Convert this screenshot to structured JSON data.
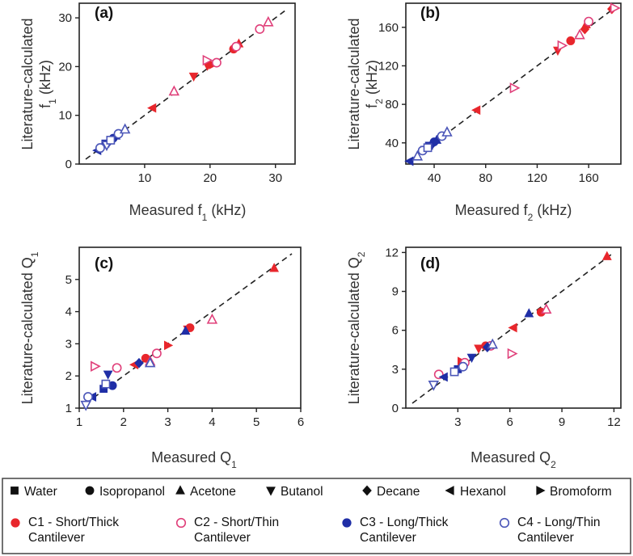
{
  "colors": {
    "C1": "#e8262c",
    "C2": "#e0407a",
    "C3": "#1f2ea6",
    "C4": "#4b56b8"
  },
  "chart_data": [
    {
      "type": "scatter",
      "panel": "(a)",
      "xlabel": "Measured f₁ (kHz)",
      "ylabel": "Literature-calculated f₁ (kHz)",
      "xlim": [
        0,
        33
      ],
      "ylim": [
        0,
        33
      ],
      "xticks": [
        10,
        20,
        30
      ],
      "yticks": [
        0,
        10,
        20,
        30
      ],
      "xtick_labels": [
        "10",
        "20",
        "30"
      ],
      "ytick_labels": [
        "0",
        "10",
        "20",
        "30"
      ],
      "reference_line": "y = x",
      "points": [
        {
          "x": 11.2,
          "y": 11.5,
          "shape": "tri-left",
          "group": "C1"
        },
        {
          "x": 17.5,
          "y": 18.0,
          "shape": "tri-down",
          "group": "C1"
        },
        {
          "x": 19.6,
          "y": 20.2,
          "shape": "tri-down",
          "group": "C1"
        },
        {
          "x": 20.4,
          "y": 20.4,
          "shape": "tri-right",
          "group": "C1"
        },
        {
          "x": 23.6,
          "y": 23.6,
          "shape": "circle",
          "group": "C1"
        },
        {
          "x": 24.4,
          "y": 24.7,
          "shape": "tri-up",
          "group": "C1"
        },
        {
          "x": 14.5,
          "y": 14.9,
          "shape": "tri-up",
          "group": "C2"
        },
        {
          "x": 19.5,
          "y": 21.3,
          "shape": "tri-right",
          "group": "C2"
        },
        {
          "x": 21.0,
          "y": 20.8,
          "shape": "circle",
          "group": "C2"
        },
        {
          "x": 24.0,
          "y": 24.1,
          "shape": "circle",
          "group": "C2"
        },
        {
          "x": 27.6,
          "y": 27.7,
          "shape": "circle",
          "group": "C2"
        },
        {
          "x": 28.9,
          "y": 29.1,
          "shape": "tri-up",
          "group": "C2"
        },
        {
          "x": 2.8,
          "y": 2.8,
          "shape": "tri-left",
          "group": "C3"
        },
        {
          "x": 3.5,
          "y": 3.4,
          "shape": "tri-down",
          "group": "C3"
        },
        {
          "x": 4.0,
          "y": 4.2,
          "shape": "square",
          "group": "C3"
        },
        {
          "x": 4.5,
          "y": 4.5,
          "shape": "diamond",
          "group": "C3"
        },
        {
          "x": 5.2,
          "y": 5.3,
          "shape": "circle",
          "group": "C3"
        },
        {
          "x": 5.6,
          "y": 5.8,
          "shape": "tri-up",
          "group": "C3"
        },
        {
          "x": 3.2,
          "y": 3.3,
          "shape": "circle",
          "group": "C4"
        },
        {
          "x": 4.2,
          "y": 3.9,
          "shape": "tri-down",
          "group": "C4"
        },
        {
          "x": 4.8,
          "y": 4.9,
          "shape": "square",
          "group": "C4"
        },
        {
          "x": 6.0,
          "y": 6.2,
          "shape": "circle",
          "group": "C4"
        },
        {
          "x": 7.0,
          "y": 7.1,
          "shape": "tri-up",
          "group": "C4"
        }
      ]
    },
    {
      "type": "scatter",
      "panel": "(b)",
      "xlabel": "Measured f₂ (kHz)",
      "ylabel": "Literature-calculated f₂ (kHz)",
      "xlim": [
        18,
        185
      ],
      "ylim": [
        18,
        185
      ],
      "xticks": [
        40,
        80,
        120,
        160
      ],
      "yticks": [
        40,
        80,
        120,
        160
      ],
      "xtick_labels": [
        "40",
        "80",
        "120",
        "160"
      ],
      "ytick_labels": [
        "40",
        "80",
        "120",
        "160"
      ],
      "reference_line": "y = x",
      "points": [
        {
          "x": 73,
          "y": 74,
          "shape": "tri-left",
          "group": "C1"
        },
        {
          "x": 136,
          "y": 136,
          "shape": "tri-down",
          "group": "C1"
        },
        {
          "x": 146,
          "y": 146,
          "shape": "circle",
          "group": "C1"
        },
        {
          "x": 157,
          "y": 158,
          "shape": "diamond",
          "group": "C1"
        },
        {
          "x": 158,
          "y": 163,
          "shape": "tri-up",
          "group": "C1"
        },
        {
          "x": 178,
          "y": 179,
          "shape": "diamond",
          "group": "C1"
        },
        {
          "x": 102,
          "y": 97,
          "shape": "tri-right",
          "group": "C2"
        },
        {
          "x": 139,
          "y": 141,
          "shape": "tri-right",
          "group": "C2"
        },
        {
          "x": 153,
          "y": 152,
          "shape": "tri-up",
          "group": "C2"
        },
        {
          "x": 160,
          "y": 166,
          "shape": "circle",
          "group": "C2"
        },
        {
          "x": 180,
          "y": 180,
          "shape": "tri-right",
          "group": "C2"
        },
        {
          "x": 21,
          "y": 21,
          "shape": "tri-left",
          "group": "C3"
        },
        {
          "x": 33,
          "y": 33,
          "shape": "tri-down",
          "group": "C3"
        },
        {
          "x": 36,
          "y": 37,
          "shape": "square",
          "group": "C3"
        },
        {
          "x": 38,
          "y": 38,
          "shape": "diamond",
          "group": "C3"
        },
        {
          "x": 40,
          "y": 41,
          "shape": "circle",
          "group": "C3"
        },
        {
          "x": 42,
          "y": 43,
          "shape": "tri-up",
          "group": "C3"
        },
        {
          "x": 27,
          "y": 26,
          "shape": "tri-up",
          "group": "C4"
        },
        {
          "x": 31,
          "y": 32,
          "shape": "circle",
          "group": "C4"
        },
        {
          "x": 35,
          "y": 35,
          "shape": "square",
          "group": "C4"
        },
        {
          "x": 46,
          "y": 47,
          "shape": "circle",
          "group": "C4"
        },
        {
          "x": 50,
          "y": 51,
          "shape": "tri-up",
          "group": "C4"
        }
      ]
    },
    {
      "type": "scatter",
      "panel": "(c)",
      "xlabel": "Measured Q₁",
      "ylabel": "Literature-calculated Q₁",
      "xlim": [
        1,
        6
      ],
      "ylim": [
        1,
        6
      ],
      "xticks": [
        1,
        2,
        3,
        4,
        5,
        6
      ],
      "yticks": [
        1,
        2,
        3,
        4,
        5
      ],
      "xtick_labels": [
        "1",
        "2",
        "3",
        "4",
        "5",
        "6"
      ],
      "ytick_labels": [
        "1",
        "2",
        "3",
        "4",
        "5"
      ],
      "reference_line": "y = x",
      "points": [
        {
          "x": 2.25,
          "y": 2.35,
          "shape": "tri-left",
          "group": "C1"
        },
        {
          "x": 2.5,
          "y": 2.55,
          "shape": "circle",
          "group": "C1"
        },
        {
          "x": 3.0,
          "y": 2.95,
          "shape": "tri-right",
          "group": "C1"
        },
        {
          "x": 3.45,
          "y": 3.45,
          "shape": "tri-down",
          "group": "C1"
        },
        {
          "x": 3.5,
          "y": 3.5,
          "shape": "circle",
          "group": "C1"
        },
        {
          "x": 5.4,
          "y": 5.35,
          "shape": "tri-up",
          "group": "C1"
        },
        {
          "x": 1.35,
          "y": 2.3,
          "shape": "tri-right",
          "group": "C2"
        },
        {
          "x": 1.85,
          "y": 2.25,
          "shape": "circle",
          "group": "C2"
        },
        {
          "x": 2.6,
          "y": 2.45,
          "shape": "tri-up",
          "group": "C2"
        },
        {
          "x": 2.75,
          "y": 2.7,
          "shape": "circle",
          "group": "C2"
        },
        {
          "x": 4.0,
          "y": 3.75,
          "shape": "tri-up",
          "group": "C2"
        },
        {
          "x": 1.3,
          "y": 1.35,
          "shape": "tri-left",
          "group": "C3"
        },
        {
          "x": 1.55,
          "y": 1.6,
          "shape": "square",
          "group": "C3"
        },
        {
          "x": 1.65,
          "y": 2.05,
          "shape": "tri-down",
          "group": "C3"
        },
        {
          "x": 1.75,
          "y": 1.7,
          "shape": "circle",
          "group": "C3"
        },
        {
          "x": 2.35,
          "y": 2.4,
          "shape": "diamond",
          "group": "C3"
        },
        {
          "x": 3.4,
          "y": 3.4,
          "shape": "tri-up",
          "group": "C3"
        },
        {
          "x": 1.15,
          "y": 1.1,
          "shape": "tri-down",
          "group": "C4"
        },
        {
          "x": 1.2,
          "y": 1.35,
          "shape": "circle",
          "group": "C4"
        },
        {
          "x": 1.6,
          "y": 1.75,
          "shape": "square",
          "group": "C4"
        },
        {
          "x": 2.6,
          "y": 2.4,
          "shape": "tri-up",
          "group": "C4"
        }
      ]
    },
    {
      "type": "scatter",
      "panel": "(d)",
      "xlabel": "Measured Q₂",
      "ylabel": "Literature-calculated Q₂",
      "xlim": [
        0,
        12.4
      ],
      "ylim": [
        0,
        12.4
      ],
      "xticks": [
        3,
        6,
        9,
        12
      ],
      "yticks": [
        0,
        3,
        6,
        9,
        12
      ],
      "xtick_labels": [
        "3",
        "6",
        "9",
        "12"
      ],
      "ytick_labels": [
        "0",
        "3",
        "6",
        "9",
        "12"
      ],
      "reference_line": "y = x",
      "points": [
        {
          "x": 3.2,
          "y": 3.6,
          "shape": "tri-right",
          "group": "C1"
        },
        {
          "x": 4.2,
          "y": 4.6,
          "shape": "tri-down",
          "group": "C1"
        },
        {
          "x": 4.6,
          "y": 4.8,
          "shape": "circle",
          "group": "C1"
        },
        {
          "x": 6.2,
          "y": 6.2,
          "shape": "tri-left",
          "group": "C1"
        },
        {
          "x": 7.8,
          "y": 7.4,
          "shape": "circle",
          "group": "C1"
        },
        {
          "x": 11.6,
          "y": 11.7,
          "shape": "tri-up",
          "group": "C1"
        },
        {
          "x": 1.9,
          "y": 2.6,
          "shape": "circle",
          "group": "C2"
        },
        {
          "x": 3.4,
          "y": 3.5,
          "shape": "circle",
          "group": "C2"
        },
        {
          "x": 4.9,
          "y": 4.8,
          "shape": "circle",
          "group": "C2"
        },
        {
          "x": 6.1,
          "y": 4.2,
          "shape": "tri-right",
          "group": "C2"
        },
        {
          "x": 8.1,
          "y": 7.6,
          "shape": "tri-up",
          "group": "C2"
        },
        {
          "x": 2.2,
          "y": 2.4,
          "shape": "tri-left",
          "group": "C3"
        },
        {
          "x": 3.0,
          "y": 3.0,
          "shape": "square",
          "group": "C3"
        },
        {
          "x": 3.8,
          "y": 3.9,
          "shape": "tri-down",
          "group": "C3"
        },
        {
          "x": 4.7,
          "y": 4.7,
          "shape": "diamond",
          "group": "C3"
        },
        {
          "x": 7.1,
          "y": 7.3,
          "shape": "tri-up",
          "group": "C3"
        },
        {
          "x": 1.6,
          "y": 1.8,
          "shape": "tri-down",
          "group": "C4"
        },
        {
          "x": 2.8,
          "y": 2.8,
          "shape": "square",
          "group": "C4"
        },
        {
          "x": 3.3,
          "y": 3.2,
          "shape": "circle",
          "group": "C4"
        },
        {
          "x": 5.0,
          "y": 4.9,
          "shape": "tri-up",
          "group": "C4"
        }
      ]
    }
  ],
  "legend": {
    "shapes": [
      {
        "shape": "square",
        "label": "Water"
      },
      {
        "shape": "circle",
        "label": "Isopropanol"
      },
      {
        "shape": "tri-up",
        "label": "Acetone"
      },
      {
        "shape": "tri-down",
        "label": "Butanol"
      },
      {
        "shape": "diamond",
        "label": "Decane"
      },
      {
        "shape": "tri-left",
        "label": "Hexanol"
      },
      {
        "shape": "tri-right",
        "label": "Bromoform"
      }
    ],
    "groups": [
      {
        "group": "C1",
        "filled": true,
        "line1": "C1 - Short/Thick",
        "line2": "Cantilever"
      },
      {
        "group": "C2",
        "filled": false,
        "line1": "C2 - Short/Thin",
        "line2": "Cantilever"
      },
      {
        "group": "C3",
        "filled": true,
        "line1": "C3 - Long/Thick",
        "line2": "Cantilever"
      },
      {
        "group": "C4",
        "filled": false,
        "line1": "C4 - Long/Thin",
        "line2": "Cantilever"
      }
    ]
  }
}
